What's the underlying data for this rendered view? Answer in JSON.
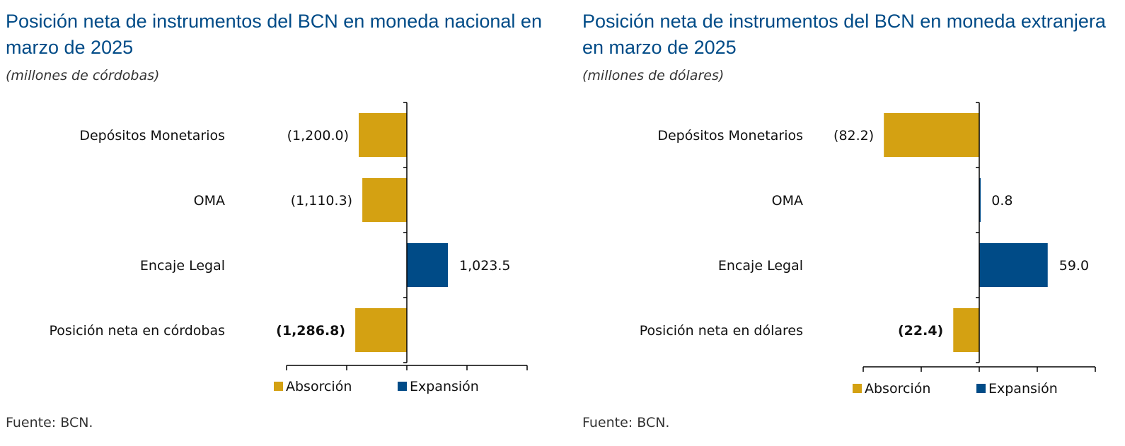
{
  "colors": {
    "absorcion": "#d4a112",
    "expansion": "#004b87",
    "title": "#004b87"
  },
  "chart_data": [
    {
      "type": "bar",
      "orientation": "horizontal",
      "title": "Posición neta de instrumentos del BCN en moneda nacional en marzo de 2025",
      "subtitle": "(millones de córdobas)",
      "categories": [
        "Depósitos Monetarios",
        "OMA",
        "Encaje Legal",
        "Posición neta en córdobas"
      ],
      "values": [
        -1200.0,
        -1110.3,
        1023.5,
        -1286.8
      ],
      "value_labels": [
        "(1,200.0)",
        "(1,110.3)",
        "1,023.5",
        "(1,286.8)"
      ],
      "bold_label_index": 3,
      "xlim": [
        -3000,
        3000
      ],
      "xtick_step": 1500,
      "legend": [
        "Absorción",
        "Expansión"
      ],
      "legend_position": "bottom",
      "source": "Fuente: BCN."
    },
    {
      "type": "bar",
      "orientation": "horizontal",
      "title": "Posición neta de instrumentos del BCN en moneda extranjera en marzo de 2025",
      "subtitle": "(millones de dólares)",
      "categories": [
        "Depósitos Monetarios",
        "OMA",
        "Encaje Legal",
        "Posición neta en dólares"
      ],
      "values": [
        -82.2,
        0.8,
        59.0,
        -22.4
      ],
      "value_labels": [
        "(82.2)",
        "0.8",
        "59.0",
        "(22.4)"
      ],
      "bold_label_index": 3,
      "xlim": [
        -100,
        100
      ],
      "xtick_step": 50,
      "legend": [
        "Absorción",
        "Expansión"
      ],
      "legend_position": "bottom",
      "source": "Fuente: BCN."
    }
  ]
}
